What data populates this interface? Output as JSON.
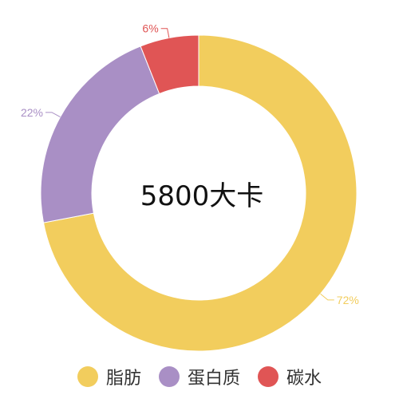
{
  "chart_data": {
    "type": "pie",
    "style": "donut",
    "center_label": "5800大卡",
    "slices": [
      {
        "name": "脂肪",
        "value": 72,
        "label": "72%",
        "color": "#F2CD5D"
      },
      {
        "name": "蛋白质",
        "value": 22,
        "label": "22%",
        "color": "#A98FC5"
      },
      {
        "name": "碳水",
        "value": 6,
        "label": "6%",
        "color": "#E05555"
      }
    ],
    "legend_position": "bottom"
  }
}
